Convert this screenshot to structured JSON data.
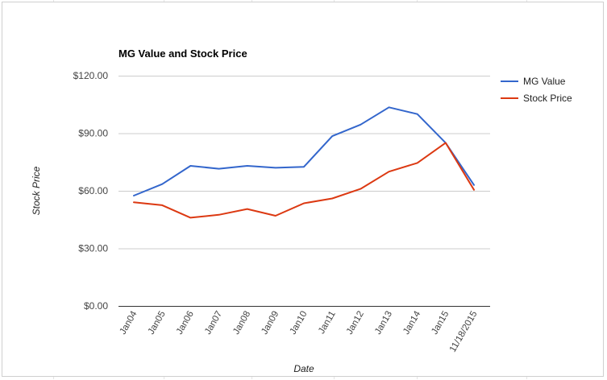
{
  "chart_data": {
    "type": "line",
    "title": "MG Value and Stock Price",
    "xlabel": "Date",
    "ylabel": "Stock Price",
    "categories": [
      "Jan04",
      "Jan05",
      "Jan06",
      "Jan07",
      "Jan08",
      "Jan09",
      "Jan10",
      "Jan11",
      "Jan12",
      "Jan13",
      "Jan14",
      "Jan15",
      "11/18/2015"
    ],
    "ylim": [
      0,
      120
    ],
    "yticks": [
      "$0.00",
      "$30.00",
      "$60.00",
      "$90.00",
      "$120.00"
    ],
    "yticks_values": [
      0,
      30,
      60,
      90,
      120
    ],
    "grid": true,
    "legend_position": "right",
    "series": [
      {
        "name": "MG Value",
        "color": "#3366cc",
        "values": [
          57.5,
          63.5,
          73,
          71.5,
          73,
          72,
          72.5,
          88.5,
          94.5,
          103.5,
          100,
          85,
          63
        ]
      },
      {
        "name": "Stock Price",
        "color": "#dc3912",
        "values": [
          54,
          52.5,
          46,
          47.5,
          50.5,
          47,
          53.5,
          56,
          61,
          70,
          74.5,
          85,
          60.5
        ]
      }
    ]
  }
}
